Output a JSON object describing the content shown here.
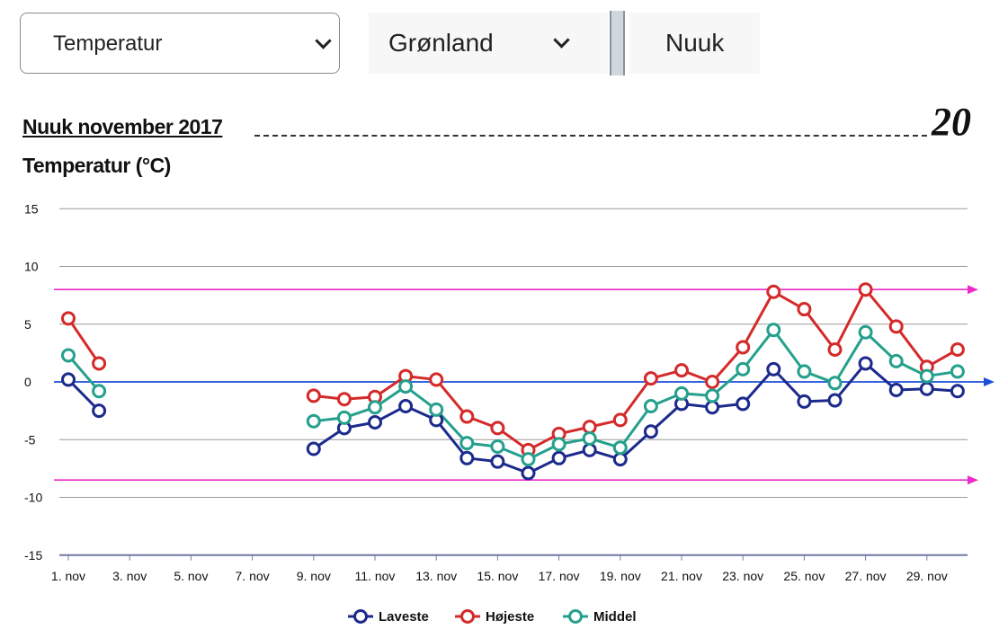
{
  "controls": {
    "measure_select": "Temperatur",
    "country_select": "Grønland",
    "city": "Nuuk"
  },
  "page_number": "20",
  "colors": {
    "low": "#1c2a8c",
    "high": "#d42a2a",
    "mid": "#25a08c",
    "zero_line": "#1b4fd8",
    "ref_lines": "#ee2bc9",
    "grid": "#9a9a9a"
  },
  "chart_data": {
    "type": "line",
    "title": "Nuuk november 2017",
    "ylabel": "Temperatur (°C)",
    "xlabel": "",
    "ylim": [
      -15,
      15
    ],
    "yticks": [
      15,
      10,
      5,
      0,
      -5,
      -10,
      -15
    ],
    "x": [
      1,
      2,
      3,
      4,
      5,
      6,
      7,
      8,
      9,
      10,
      11,
      12,
      13,
      14,
      15,
      16,
      17,
      18,
      19,
      20,
      21,
      22,
      23,
      24,
      25,
      26,
      27,
      28,
      29,
      30
    ],
    "x_tick_labels": [
      "1. nov",
      "3. nov",
      "5. nov",
      "7. nov",
      "9. nov",
      "11. nov",
      "13. nov",
      "15. nov",
      "17. nov",
      "19. nov",
      "21. nov",
      "23. nov",
      "25. nov",
      "27. nov",
      "29. nov"
    ],
    "x_tick_days": [
      1,
      3,
      5,
      7,
      9,
      11,
      13,
      15,
      17,
      19,
      21,
      23,
      25,
      27,
      29
    ],
    "reference_lines": [
      8.0,
      -8.5
    ],
    "series": [
      {
        "name": "Laveste",
        "color_key": "low",
        "values": [
          0.2,
          -2.5,
          null,
          null,
          null,
          null,
          null,
          null,
          -5.8,
          -4.0,
          -3.5,
          -2.1,
          -3.3,
          -6.6,
          -6.9,
          -7.9,
          -6.6,
          -5.9,
          -6.7,
          -4.3,
          -1.9,
          -2.2,
          -1.9,
          1.1,
          -1.7,
          -1.6,
          1.6,
          -0.7,
          -0.6,
          -0.8
        ]
      },
      {
        "name": "Højeste",
        "color_key": "high",
        "values": [
          5.5,
          1.6,
          null,
          null,
          null,
          null,
          null,
          null,
          -1.2,
          -1.5,
          -1.3,
          0.5,
          0.2,
          -3.0,
          -4.0,
          -5.9,
          -4.5,
          -3.9,
          -3.3,
          0.3,
          1.0,
          0.0,
          3.0,
          7.8,
          6.3,
          2.8,
          8.0,
          4.8,
          1.3,
          2.8
        ]
      },
      {
        "name": "Middel",
        "color_key": "mid",
        "values": [
          2.3,
          -0.8,
          null,
          null,
          null,
          null,
          null,
          null,
          -3.4,
          -3.1,
          -2.2,
          -0.4,
          -2.4,
          -5.3,
          -5.6,
          -6.7,
          -5.4,
          -4.9,
          -5.7,
          -2.1,
          -1.0,
          -1.2,
          1.1,
          4.5,
          0.9,
          -0.1,
          4.3,
          1.8,
          0.5,
          0.9
        ]
      }
    ],
    "grid": true,
    "legend": "bottom-center"
  }
}
